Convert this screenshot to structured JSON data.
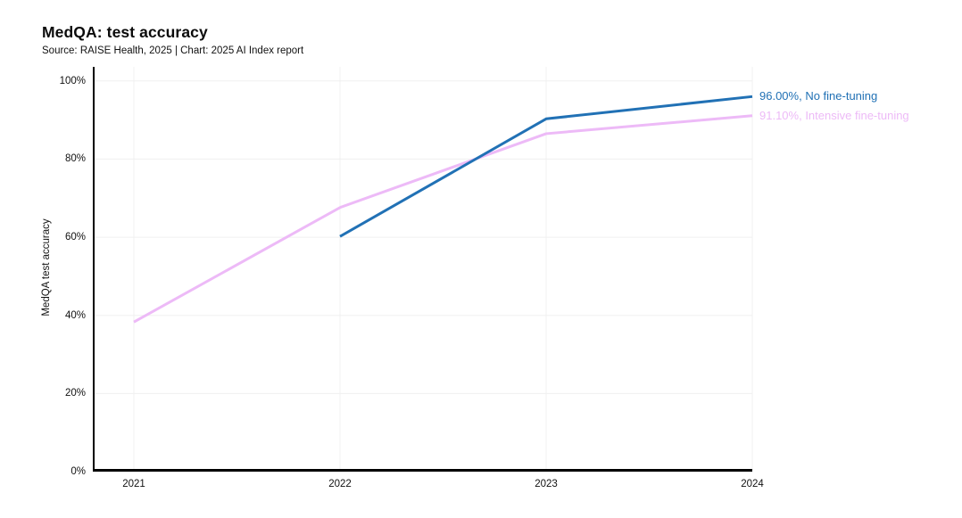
{
  "chart_data": {
    "type": "line",
    "title": "MedQA: test accuracy",
    "subtitle": "Source: RAISE Health, 2025 | Chart: 2025 AI Index report",
    "ylabel": "MedQA test accuracy",
    "xlabel": "",
    "x": [
      2021,
      2022,
      2023,
      2024
    ],
    "x_tick_labels": [
      "2021",
      "2022",
      "2023",
      "2024"
    ],
    "y_ticks": [
      0,
      20,
      40,
      60,
      80,
      100
    ],
    "y_tick_labels": [
      "0%",
      "20%",
      "40%",
      "60%",
      "80%",
      "100%"
    ],
    "ylim": [
      0,
      103.6
    ],
    "grid": true,
    "legend_position": "end-of-line-labels-right",
    "series": [
      {
        "name": "Intensive fine-tuning",
        "color": "#edbaf7",
        "values": [
          38.3,
          67.6,
          86.5,
          91.1
        ],
        "end_label": "91.10%, Intensive fine-tuning"
      },
      {
        "name": "No fine-tuning",
        "color": "#2171b5",
        "values": [
          null,
          60.2,
          90.3,
          96.0
        ],
        "end_label": "96.00%, No fine-tuning"
      }
    ],
    "colors": {
      "axis": "#000000",
      "gridline": "#f0f0f0",
      "text": "#111111"
    }
  }
}
